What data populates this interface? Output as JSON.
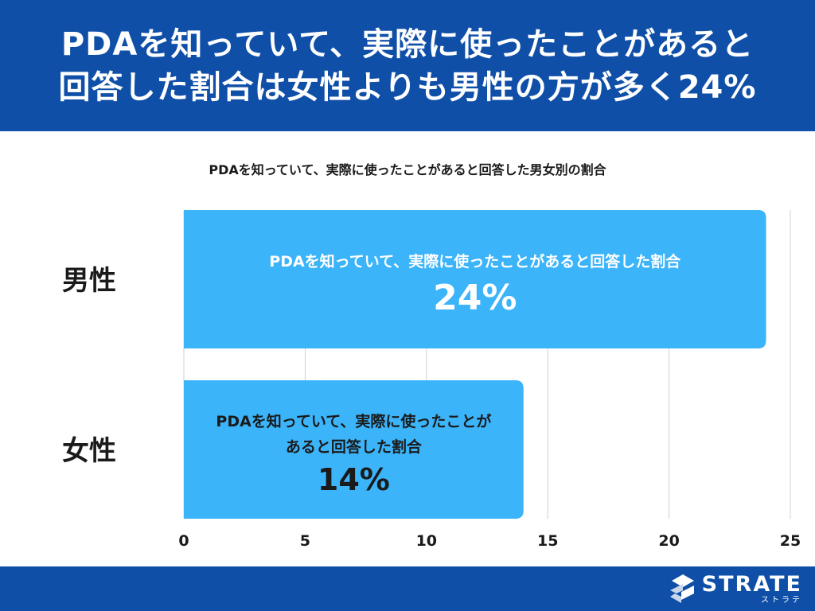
{
  "header": {
    "title_line1": "PDAを知っていて、実際に使ったことがあると",
    "title_line2": "回答した割合は女性よりも男性の方が多く24%"
  },
  "footer": {
    "logo_name": "STRATE",
    "logo_sub": "ストラテ"
  },
  "chart_data": {
    "type": "bar",
    "orientation": "horizontal",
    "title": "PDAを知っていて、実際に使ったことがあると回答した男女別の割合",
    "categories": [
      "男性",
      "女性"
    ],
    "values": [
      24,
      14
    ],
    "bar_labels": [
      [
        "PDAを知っていて、実際に使ったことがあると回答した割合"
      ],
      [
        "PDAを知っていて、実際に使ったことが",
        "あると回答した割合"
      ]
    ],
    "value_labels": [
      "24%",
      "14%"
    ],
    "xlim": [
      0,
      25
    ],
    "xticks": [
      "0",
      "5",
      "10",
      "15",
      "20",
      "25"
    ],
    "xtick_values": [
      0,
      5,
      10,
      15,
      20,
      25
    ],
    "grid": true,
    "colors": {
      "bar": "#3cb4fa",
      "grid": "#d0d0d0",
      "bar_text_male": "#ffffff",
      "bar_text_female": "#1a1a1a",
      "header": "#0f4fa8"
    }
  }
}
